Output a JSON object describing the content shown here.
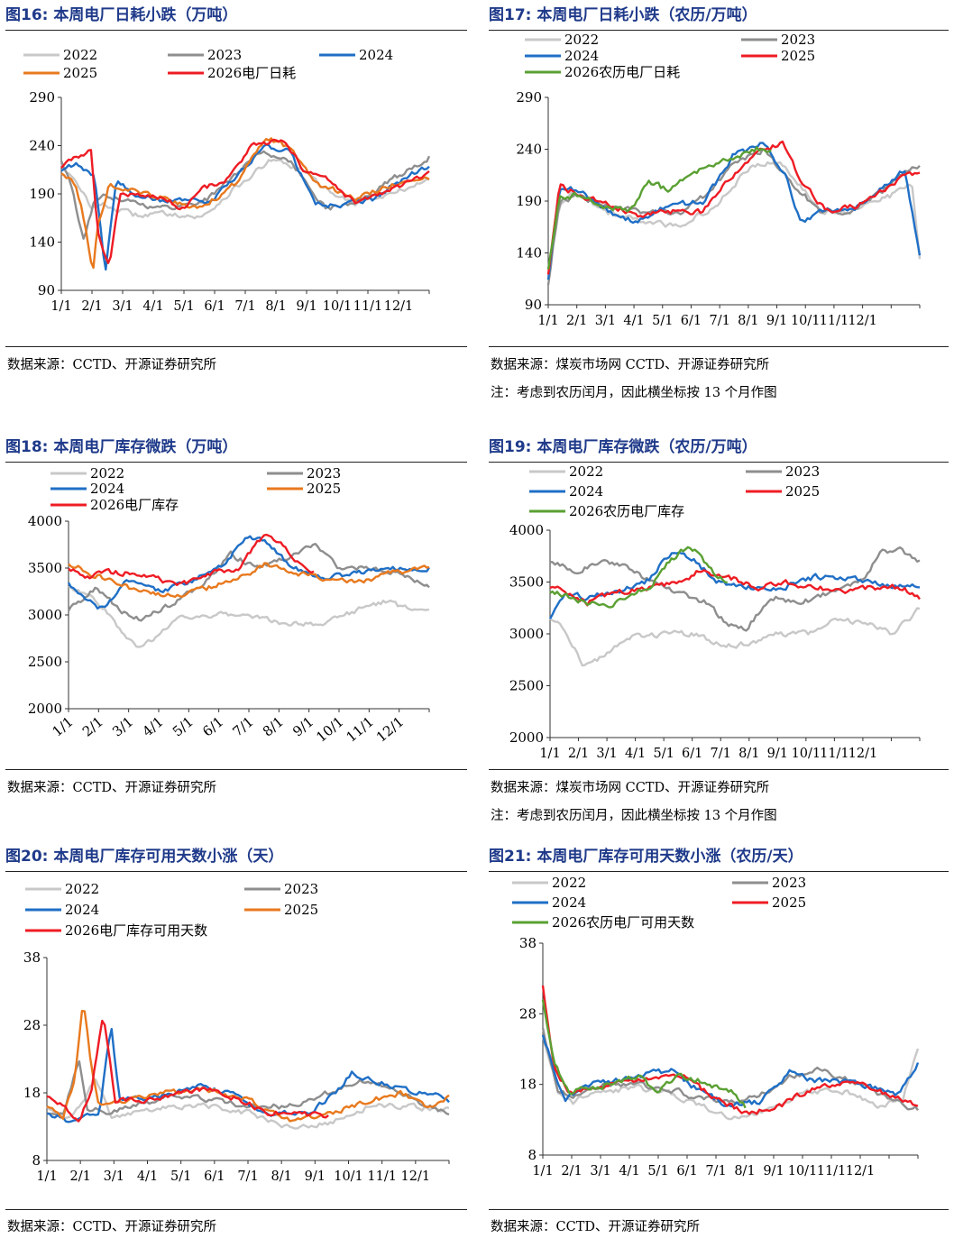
{
  "months": [
    "1/1",
    "2/1",
    "3/1",
    "4/1",
    "5/1",
    "6/1",
    "7/1",
    "8/1",
    "9/1",
    "10/1",
    "11/1",
    "12/1"
  ],
  "colors": {
    "2022": "#c8c8c8",
    "2023": "#8e8e8e",
    "2024": "#1f6fc6",
    "2025": "#e8791e",
    "2026": "#ee1c24",
    "2026lunar": "#5aa032",
    "title": "#1f3a8a"
  },
  "panels": [
    {
      "id": "f16",
      "title": "图16:  本周电厂日耗小跌（万吨）",
      "notes": [
        "数据来源：CCTD、开源证券研究所"
      ],
      "chart_data": {
        "type": "line",
        "yticks": [
          "290",
          "240",
          "190",
          "140",
          "90"
        ],
        "ylim": [
          90,
          290
        ],
        "legend": [
          "2022",
          "2023",
          "2024",
          "2025",
          "2026电厂日耗"
        ]
      }
    },
    {
      "id": "f17",
      "title": "图17:  本周电厂日耗小跌（农历/万吨）",
      "notes": [
        "数据来源：煤炭市场网 CCTD、开源证券研究所",
        "注：考虑到农历闰月，因此横坐标按 13 个月作图"
      ],
      "chart_data": {
        "type": "line",
        "yticks": [
          "290",
          "240",
          "190",
          "140",
          "90"
        ],
        "ylim": [
          90,
          290
        ],
        "legend": [
          "2022",
          "2023",
          "2024",
          "2025",
          "2026农历电厂日耗"
        ]
      }
    },
    {
      "id": "f18",
      "title": "图18:  本周电厂库存微跌（万吨）",
      "notes": [
        "数据来源：CCTD、开源证券研究所"
      ],
      "chart_data": {
        "type": "line",
        "yticks": [
          "4000",
          "3500",
          "3000",
          "2500",
          "2000"
        ],
        "ylim": [
          2000,
          4000
        ],
        "legend": [
          "2022",
          "2023",
          "2024",
          "2025",
          "2026电厂库存"
        ]
      }
    },
    {
      "id": "f19",
      "title": "图19:  本周电厂库存微跌（农历/万吨）",
      "notes": [
        "数据来源：煤炭市场网 CCTD、开源证券研究所",
        "注：考虑到农历闰月，因此横坐标按 13 个月作图"
      ],
      "chart_data": {
        "type": "line",
        "yticks": [
          "4000",
          "3500",
          "3000",
          "2500",
          "2000"
        ],
        "ylim": [
          2000,
          4000
        ],
        "legend": [
          "2022",
          "2023",
          "2024",
          "2025",
          "2026农历电厂库存"
        ]
      }
    },
    {
      "id": "f20",
      "title": "图20:  本周电厂库存可用天数小涨（天）",
      "notes": [
        "数据来源：CCTD、开源证券研究所"
      ],
      "chart_data": {
        "type": "line",
        "yticks": [
          "38",
          "28",
          "18",
          "8"
        ],
        "ylim": [
          8,
          38
        ],
        "legend": [
          "2022",
          "2023",
          "2024",
          "2025",
          "2026电厂库存可用天数"
        ]
      }
    },
    {
      "id": "f21",
      "title": "图21:  本周电厂库存可用天数小涨（农历/天）",
      "notes": [
        "数据来源：CCTD、开源证券研究所"
      ],
      "chart_data": {
        "type": "line",
        "yticks": [
          "38",
          "28",
          "18",
          "8"
        ],
        "ylim": [
          8,
          38
        ],
        "legend": [
          "2022",
          "2023",
          "2024",
          "2025",
          "2026农历电厂可用天数"
        ]
      }
    }
  ]
}
